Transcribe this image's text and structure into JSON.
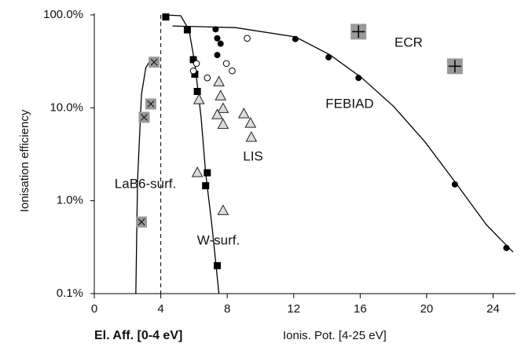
{
  "chart_data": {
    "type": "scatter",
    "y_label": "Ionisation efficiency",
    "x_label_left": "El. Aff.  [0-4 eV]",
    "x_label_right": "Ionis. Pot.  [4-25 eV]",
    "xlim": [
      0,
      25.3
    ],
    "ylim": [
      0.1,
      100
    ],
    "ylog": true,
    "xticks": [
      0,
      4,
      8,
      12,
      16,
      20,
      24
    ],
    "yticks": [
      {
        "value": 0.1,
        "label": "0.1%"
      },
      {
        "value": 1,
        "label": "1.0%"
      },
      {
        "value": 10,
        "label": "10.0%"
      },
      {
        "value": 100,
        "label": "100.0%"
      }
    ],
    "vline": 4,
    "series": [
      {
        "marker": "xsquare",
        "color": "#999999",
        "x": [
          2.84,
          3.0,
          3.4,
          3.6
        ],
        "values": [
          0.59,
          7.9,
          11,
          31
        ]
      },
      {
        "marker": "square",
        "color": "#000000",
        "x": [
          4.3,
          5.6,
          5.96,
          6.05,
          6.2,
          6.8,
          6.7,
          7.4
        ],
        "values": [
          95,
          69,
          33,
          23,
          15,
          2.0,
          1.45,
          0.2
        ]
      },
      {
        "marker": "circle",
        "color": "#000000",
        "x": [
          7.3,
          7.4,
          7.4,
          7.6,
          12.1,
          14.1,
          15.9,
          21.7,
          24.8
        ],
        "values": [
          70,
          37,
          56,
          49,
          55,
          35,
          21,
          1.5,
          0.31
        ]
      },
      {
        "marker": "opencircle",
        "color": "#000000",
        "x": [
          9.2,
          6.15,
          5.96,
          6.8,
          7.95,
          8.3
        ],
        "values": [
          56,
          30,
          25,
          21,
          30,
          25
        ]
      },
      {
        "marker": "triangle",
        "color": "#dddddd",
        "x": [
          7.5,
          7.6,
          7.75,
          7.4,
          7.75,
          9.0,
          9.4,
          9.45,
          6.2,
          6.3,
          7.75
        ],
        "values": [
          19,
          13.4,
          9.8,
          8.4,
          6.6,
          8.6,
          6.8,
          4.8,
          2.0,
          12.2,
          0.78
        ]
      },
      {
        "marker": "plus",
        "color": "#999999",
        "x": [
          15.9,
          21.7
        ],
        "values": [
          66,
          28
        ]
      },
      {
        "marker": "line",
        "color": "#000000",
        "x": [
          2.5,
          2.6,
          2.84,
          3.1,
          3.4,
          3.8
        ],
        "values": [
          0.1,
          1.6,
          14,
          27,
          33,
          34
        ]
      },
      {
        "marker": "line",
        "color": "#000000",
        "x": [
          4.2,
          5.2,
          5.7,
          6.05,
          6.43,
          6.7,
          7.1,
          7.5
        ],
        "values": [
          100,
          98,
          69,
          30,
          7.8,
          2.0,
          0.5,
          0.1
        ]
      },
      {
        "marker": "line",
        "color": "#000000",
        "x": [
          4.7,
          8.5,
          12.1,
          14.2,
          16.1,
          18,
          19.9,
          21.7,
          23.6,
          25.2
        ],
        "values": [
          76,
          73,
          58,
          37,
          21,
          10.4,
          4.3,
          1.6,
          0.55,
          0.28
        ]
      }
    ],
    "annotations": [
      "ECR",
      "FEBIAD",
      "LIS",
      "LaB6-surf.",
      "W-surf."
    ]
  }
}
